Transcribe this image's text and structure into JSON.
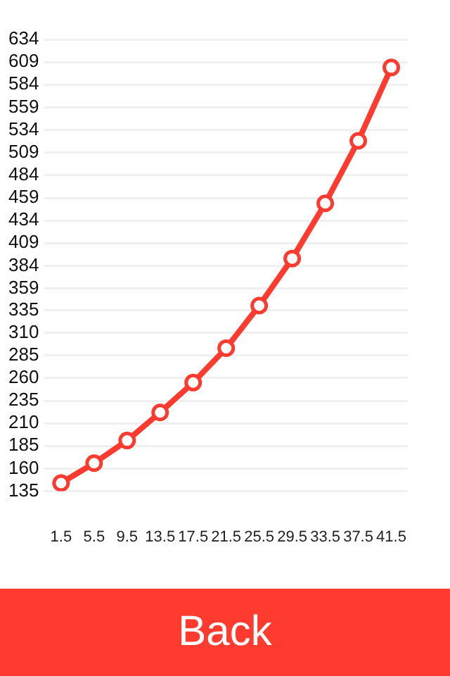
{
  "chart_data": {
    "type": "line",
    "categories": [
      "1.5",
      "5.5",
      "9.5",
      "13.5",
      "17.5",
      "21.5",
      "25.5",
      "29.5",
      "33.5",
      "37.5",
      "41.5"
    ],
    "series": [
      {
        "color": "#ff3b30",
        "values": [
          144,
          166,
          191,
          222,
          255,
          293,
          340,
          392,
          453,
          522,
          603
        ]
      }
    ],
    "ylim": [
      135,
      634
    ],
    "yticks": [
      135,
      160,
      185,
      210,
      235,
      260,
      285,
      310,
      335,
      359,
      384,
      409,
      434,
      459,
      484,
      509,
      534,
      559,
      584,
      609,
      634
    ],
    "grid": "y",
    "marker": "circle",
    "line_style": "solid",
    "legend": false,
    "annotations": [
      "Back"
    ]
  }
}
